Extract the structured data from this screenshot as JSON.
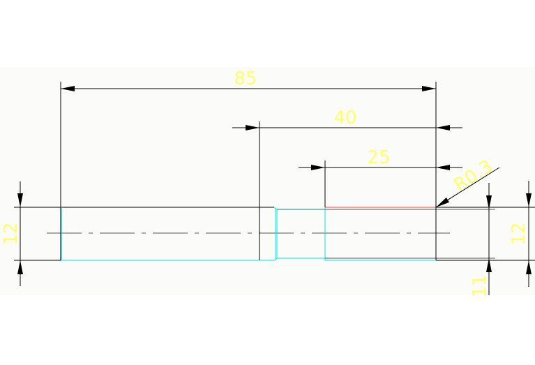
{
  "drawing": {
    "dimensions": {
      "overall_length": "85",
      "shoulder_length": "40",
      "thread_length": "25",
      "fillet_radius": "R0.3",
      "left_diameter": "12",
      "right_small_diameter": "11",
      "right_diameter": "12"
    },
    "colors": {
      "background": "#fbfcf9",
      "outline": "#000000",
      "edge": "#00ffff",
      "highlight": "#ff3333",
      "dimension_text": "#ffff66"
    }
  }
}
